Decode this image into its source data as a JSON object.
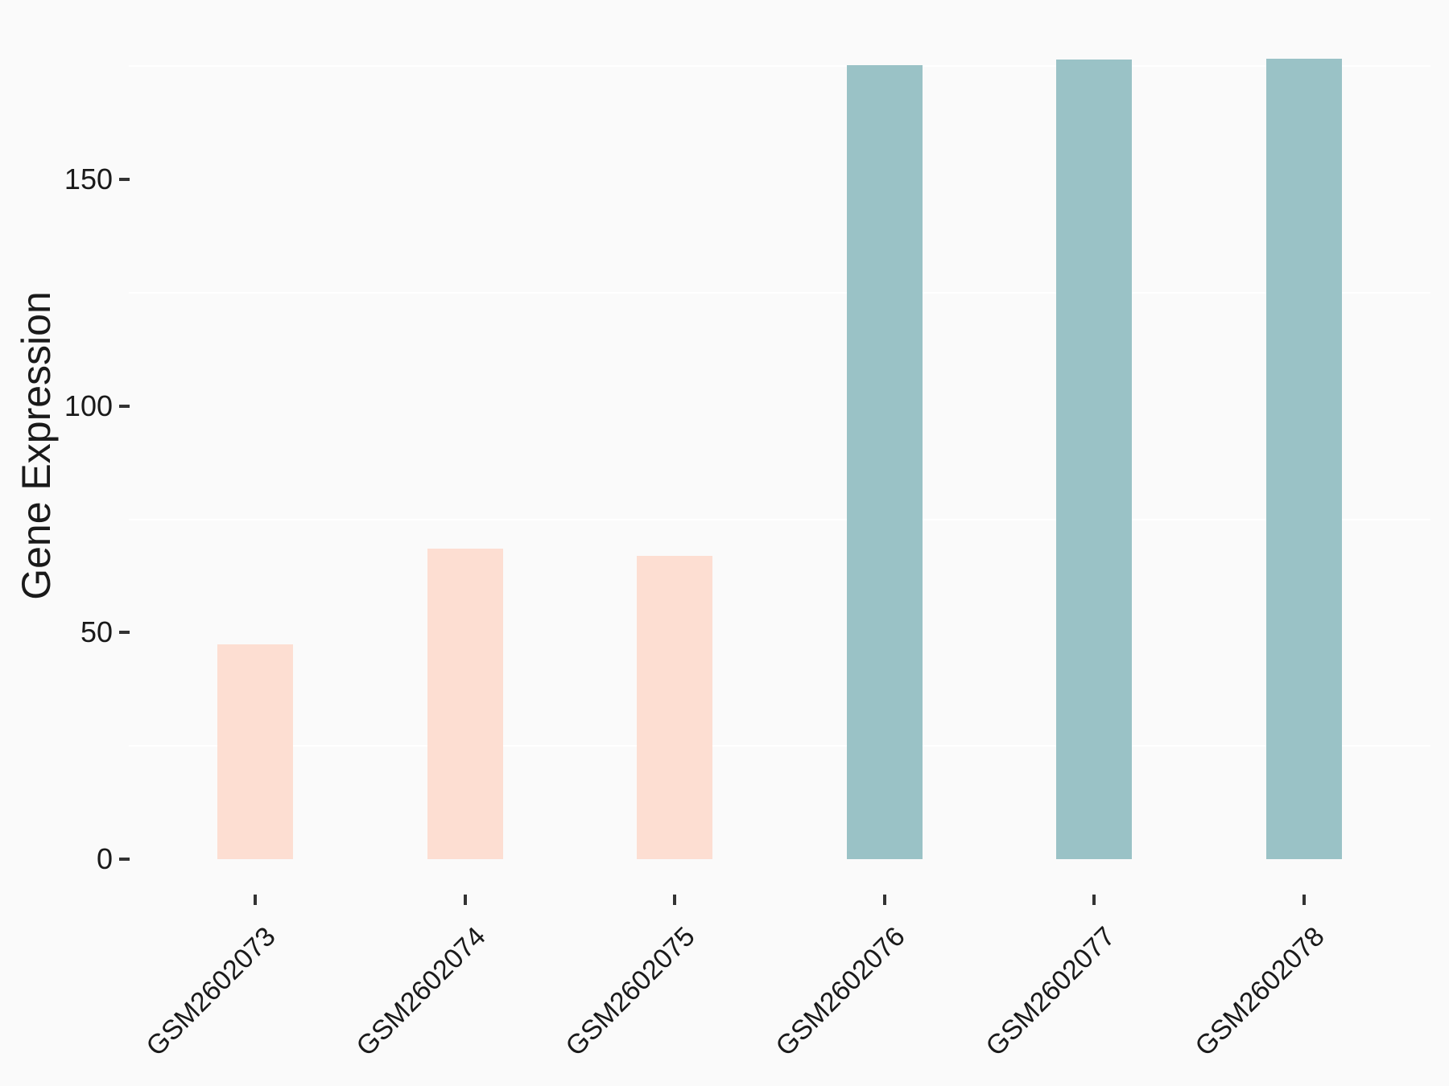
{
  "chart_data": {
    "type": "bar",
    "title": "",
    "xlabel": "",
    "ylabel": "Gene Expression",
    "categories": [
      "GSM2602073",
      "GSM2602074",
      "GSM2602075",
      "GSM2602076",
      "GSM2602077",
      "GSM2602078"
    ],
    "values": [
      47.4,
      68.5,
      66.9,
      175.2,
      176.5,
      176.7
    ],
    "bar_fills": [
      "#FDDED2",
      "#FDDED2",
      "#FDDED2",
      "#9AC2C6",
      "#9AC2C6",
      "#9AC2C6"
    ],
    "y_ticks": [
      0,
      50,
      100,
      150
    ],
    "y_minor_gridlines": [
      25,
      75,
      125,
      175
    ],
    "ylim": [
      -8.7,
      176.7
    ],
    "legend": "none",
    "grid": "minor horizontal gridlines only (white on light gray panel)",
    "x_tick_label_angle": 45
  },
  "style": {
    "background": "#FAFAFA",
    "gridline_color": "#FFFFFF",
    "tick_color": "#333333",
    "text_color": "#1A1A1A",
    "pink_fill": "#FDDED2",
    "teal_fill": "#9AC2C6"
  }
}
